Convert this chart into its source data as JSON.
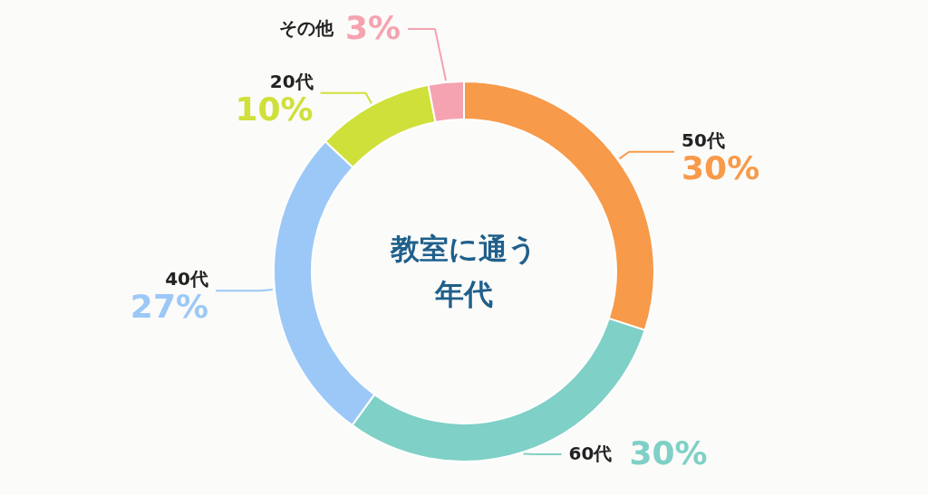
{
  "chart_data": {
    "type": "donut",
    "title": "教室に通う",
    "subtitle": "年代",
    "categories": [
      "50代",
      "60代",
      "40代",
      "20代",
      "その他"
    ],
    "values": [
      30,
      30,
      27,
      10,
      3
    ],
    "value_labels": [
      "30%",
      "30%",
      "27%",
      "10%",
      "3%"
    ],
    "colors": [
      "#f79a4a",
      "#7fd0c6",
      "#9cc8f7",
      "#cfe03a",
      "#f5a3b0"
    ]
  }
}
